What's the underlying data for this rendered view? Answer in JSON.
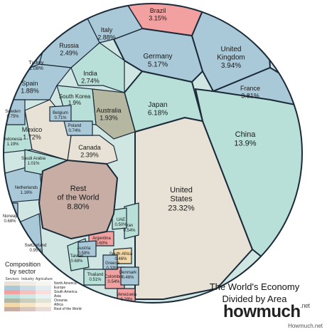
{
  "chart_data": {
    "type": "voronoi-treemap",
    "title": "The World's Economy Divided by Area",
    "unit": "% of world economy",
    "cells": [
      {
        "name": "United States",
        "value": "23.32%",
        "group": "north-america"
      },
      {
        "name": "China",
        "value": "13.9%",
        "group": "asia"
      },
      {
        "name": "Japan",
        "value": "6.18%",
        "group": "asia"
      },
      {
        "name": "Germany",
        "value": "5.17%",
        "group": "europe"
      },
      {
        "name": "United Kingdom",
        "value": "3.94%",
        "group": "europe"
      },
      {
        "name": "France",
        "value": "3.81%",
        "group": "europe"
      },
      {
        "name": "Brazil",
        "value": "3.15%",
        "group": "south-america"
      },
      {
        "name": "Italy",
        "value": "2.88%",
        "group": "europe"
      },
      {
        "name": "India",
        "value": "2.74%",
        "group": "asia"
      },
      {
        "name": "Russia",
        "value": "2.49%",
        "group": "europe"
      },
      {
        "name": "Canada",
        "value": "2.39%",
        "group": "north-america"
      },
      {
        "name": "Australia",
        "value": "1.93%",
        "group": "oceania"
      },
      {
        "name": "South Korea",
        "value": "1.9%",
        "group": "asia"
      },
      {
        "name": "Spain",
        "value": "1.88%",
        "group": "europe"
      },
      {
        "name": "Mexico",
        "value": "1.72%",
        "group": "north-america"
      },
      {
        "name": "Indonesia",
        "value": "1.19%",
        "group": "asia"
      },
      {
        "name": "Netherlands",
        "value": "1.16%",
        "group": "europe"
      },
      {
        "name": "Turkey",
        "value": "1.08%",
        "group": "europe"
      },
      {
        "name": "Saudi Arabia",
        "value": "1.01%",
        "group": "asia"
      },
      {
        "name": "Switzerland",
        "value": "0.95%",
        "group": "europe"
      },
      {
        "name": "Sweden",
        "value": "0.75%",
        "group": "europe"
      },
      {
        "name": "Poland",
        "value": "0.74%",
        "group": "europe"
      },
      {
        "name": "Belgium",
        "value": "0.71%",
        "group": "europe"
      },
      {
        "name": "Norway",
        "value": "0.68%",
        "group": "europe"
      },
      {
        "name": "Taiwan",
        "value": "0.68%",
        "group": "asia"
      },
      {
        "name": "Argentina",
        "value": "0.60%",
        "group": "south-america"
      },
      {
        "name": "Austria",
        "value": "0.58%",
        "group": "europe"
      },
      {
        "name": "Iran",
        "value": "0.54%",
        "group": "asia"
      },
      {
        "name": "Colombia",
        "value": "0.54%",
        "group": "south-america"
      },
      {
        "name": "UAE",
        "value": "0.50%",
        "group": "asia"
      },
      {
        "name": "Thailand",
        "value": "0.51%",
        "group": "asia"
      },
      {
        "name": "Denmark",
        "value": "0.46%",
        "group": "europe"
      },
      {
        "name": "South Africa",
        "value": "0.46%",
        "group": "africa"
      },
      {
        "name": "Greece",
        "value": "0.33%",
        "group": "europe"
      },
      {
        "name": "Venezuela",
        "value": "0.28%",
        "group": "south-america"
      },
      {
        "name": "Rest of the World",
        "value": "8.80%",
        "group": "rest"
      }
    ],
    "sectors": [
      "Services",
      "Industry",
      "Agriculture"
    ],
    "regions": [
      "North America",
      "Europe",
      "South America",
      "Asia",
      "Oceania",
      "Africa",
      "Rest of the World"
    ],
    "region_colors": {
      "north-america": "#e8e2d6",
      "europe": "#a9c8d8",
      "south-america": "#f3a0a0",
      "asia": "#b9e0d8",
      "oceania": "#b5b7a0",
      "africa": "#f3d9a8",
      "rest": "#c7ada4"
    }
  },
  "legend": {
    "title": "Composition by sector",
    "headers": [
      "Services",
      "Industry",
      "Agriculture"
    ],
    "rows": [
      {
        "label": "North America",
        "colors": [
          "#e8e2d6",
          "#f1ede4",
          "#f7f5f0"
        ]
      },
      {
        "label": "Europe",
        "colors": [
          "#a9c8d8",
          "#c7dce6",
          "#e2edf2"
        ]
      },
      {
        "label": "South America",
        "colors": [
          "#f3a0a0",
          "#f6c0c0",
          "#fadede"
        ]
      },
      {
        "label": "Asia",
        "colors": [
          "#b9e0d8",
          "#d0ebe5",
          "#e6f5f2"
        ]
      },
      {
        "label": "Oceania",
        "colors": [
          "#b5b7a0",
          "#cccebb",
          "#e2e3d6"
        ]
      },
      {
        "label": "Africa",
        "colors": [
          "#f3d9a8",
          "#f7e6c6",
          "#fbf2e2"
        ]
      },
      {
        "label": "Rest of the World",
        "colors": [
          "#c7ada4",
          "#d8c5be",
          "#e8dcd8"
        ]
      }
    ]
  },
  "title_line1": "The World's Economy",
  "title_line2": "Divided by Area",
  "brand": "howmuch",
  "brand_suffix": ".net",
  "credit": "Howmuch.net"
}
